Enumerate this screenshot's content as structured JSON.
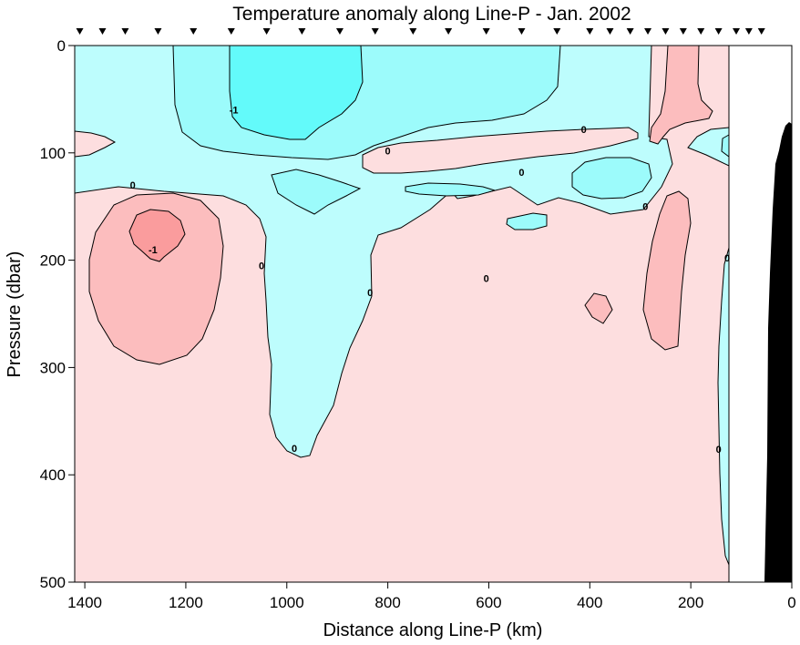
{
  "chart_data": {
    "type": "contour",
    "title": "Temperature anomaly along Line-P - Jan. 2002",
    "xlabel": "Distance along Line-P (km)",
    "ylabel": "Pressure (dbar)",
    "xlim": [
      1420,
      0
    ],
    "ylim": [
      0,
      500
    ],
    "x_inverted": true,
    "y_inverted": true,
    "x_ticks": [
      1400,
      1200,
      1000,
      800,
      600,
      400,
      200,
      0
    ],
    "y_ticks": [
      0,
      100,
      200,
      300,
      400,
      500
    ],
    "station_markers_km": [
      1410,
      1365,
      1320,
      1255,
      1185,
      1110,
      1040,
      970,
      895,
      825,
      750,
      680,
      605,
      535,
      465,
      400,
      360,
      320,
      285,
      250,
      215,
      180,
      145,
      110,
      85,
      60
    ],
    "contour_levels": [
      -1,
      0,
      1
    ],
    "contour_labels": [
      {
        "text": "-1",
        "x": 1105,
        "y": 60
      },
      {
        "text": "0",
        "x": 1305,
        "y": 130
      },
      {
        "text": "-1",
        "x": 1265,
        "y": 190
      },
      {
        "text": "0",
        "x": 1050,
        "y": 205
      },
      {
        "text": "0",
        "x": 835,
        "y": 230
      },
      {
        "text": "0",
        "x": 985,
        "y": 375
      },
      {
        "text": "0",
        "x": 800,
        "y": 98
      },
      {
        "text": "0",
        "x": 412,
        "y": 78
      },
      {
        "text": "0",
        "x": 535,
        "y": 118
      },
      {
        "text": "0",
        "x": 605,
        "y": 217
      },
      {
        "text": "0",
        "x": 290,
        "y": 150
      },
      {
        "text": "0",
        "x": 128,
        "y": 198
      },
      {
        "text": "0",
        "x": 145,
        "y": 376
      }
    ],
    "fill_colors": {
      "warm_weak": "#FDDEDF",
      "warm": "#FCBDBE",
      "warm_strong": "#FA9C9D",
      "cold_weak": "#BDFDFD",
      "cold": "#9CFBFB",
      "cold_strong": "#63FAFA",
      "land": "#000000",
      "no_data": "#FFFFFF"
    }
  }
}
